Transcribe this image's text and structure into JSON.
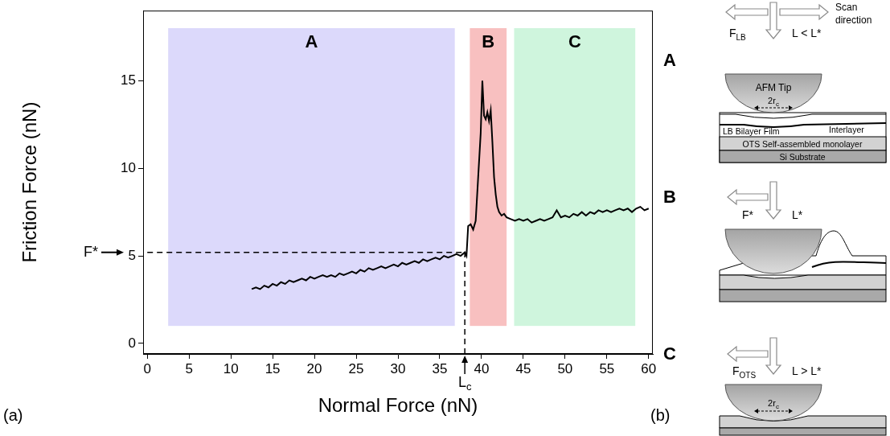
{
  "chart_data": {
    "type": "line",
    "x_label": "Normal Force (nN)",
    "y_label": "Friction Force (nN)",
    "x": [
      12.5,
      13,
      13.5,
      14,
      14.5,
      15,
      15.5,
      16,
      16.5,
      17,
      17.5,
      18,
      18.5,
      19,
      19.5,
      20,
      20.5,
      21,
      21.5,
      22,
      22.5,
      23,
      23.5,
      24,
      24.5,
      25,
      25.5,
      26,
      26.5,
      27,
      27.5,
      28,
      28.5,
      29,
      29.5,
      30,
      30.5,
      31,
      31.5,
      32,
      32.5,
      33,
      33.5,
      34,
      34.5,
      35,
      35.5,
      36,
      36.5,
      37,
      37.5,
      38,
      38.2,
      38.4,
      38.7,
      39,
      39.3,
      39.6,
      39.9,
      40.1,
      40.3,
      40.5,
      40.7,
      40.9,
      41.1,
      41.3,
      41.5,
      41.7,
      41.9,
      42.1,
      42.4,
      42.7,
      43,
      43.5,
      44,
      44.5,
      45,
      45.5,
      46,
      46.5,
      47,
      47.5,
      48,
      48.5,
      49,
      49.5,
      50,
      50.5,
      51,
      51.5,
      52,
      52.5,
      53,
      53.5,
      54,
      54.5,
      55,
      55.5,
      56,
      56.5,
      57,
      57.5,
      58,
      58.5,
      59,
      59.5,
      60
    ],
    "values": [
      3.1,
      3.2,
      3.1,
      3.3,
      3.2,
      3.4,
      3.3,
      3.5,
      3.4,
      3.6,
      3.5,
      3.6,
      3.7,
      3.6,
      3.8,
      3.7,
      3.8,
      3.9,
      3.8,
      3.9,
      3.8,
      4.0,
      3.9,
      4.0,
      4.1,
      4.0,
      4.2,
      4.1,
      4.3,
      4.2,
      4.3,
      4.4,
      4.3,
      4.4,
      4.5,
      4.4,
      4.6,
      4.5,
      4.6,
      4.7,
      4.6,
      4.8,
      4.7,
      4.8,
      4.9,
      4.8,
      5.0,
      4.9,
      5.0,
      5.1,
      5.0,
      5.2,
      5.0,
      6.7,
      6.8,
      6.5,
      7.0,
      9.5,
      12.0,
      15.0,
      13.0,
      12.8,
      13.2,
      12.7,
      13.3,
      11.5,
      9.5,
      8.5,
      7.8,
      7.5,
      7.3,
      7.4,
      7.2,
      7.1,
      7.0,
      7.1,
      7.0,
      7.1,
      6.9,
      7.0,
      7.1,
      7.0,
      7.1,
      7.2,
      7.6,
      7.2,
      7.3,
      7.2,
      7.4,
      7.3,
      7.5,
      7.3,
      7.5,
      7.4,
      7.6,
      7.5,
      7.6,
      7.5,
      7.6,
      7.7,
      7.6,
      7.7,
      7.5,
      7.7,
      7.8,
      7.6,
      7.7
    ],
    "color": "#000000",
    "xlim": [
      -0.5,
      60.5
    ],
    "xticks": [
      0,
      5,
      10,
      15,
      20,
      25,
      30,
      35,
      40,
      45,
      50,
      55,
      60
    ],
    "ylim": [
      -0.6,
      19
    ],
    "yticks": [
      0,
      5,
      10,
      15
    ],
    "grid": false,
    "regions": [
      {
        "label": "A",
        "x": [
          2.5,
          36.8
        ],
        "y": [
          1,
          18
        ],
        "color": "#dcd9fb"
      },
      {
        "label": "B",
        "x": [
          38.6,
          43.0
        ],
        "y": [
          1,
          18
        ],
        "color": "#f8c0c0"
      },
      {
        "label": "C",
        "x": [
          43.9,
          58.4
        ],
        "y": [
          1,
          18
        ],
        "color": "#cff5dd"
      }
    ],
    "markers": [
      {
        "text": "F*",
        "y": 5.2,
        "x": [
          0,
          38
        ]
      },
      {
        "text": "L",
        "sub": "c",
        "x": 38,
        "y": [
          -0.6,
          5.2
        ]
      }
    ]
  },
  "panel_labels": [
    "(a)",
    "(b)"
  ],
  "diagram": {
    "panels": [
      {
        "letter": "A",
        "force": {
          "text": "F",
          "sub": "LB"
        },
        "load": "L < L*",
        "scan": "Scan direction",
        "tip": "AFM Tip",
        "contact": {
          "text": "2r",
          "sub": "c"
        },
        "layers": [
          "LB Bilayer Film",
          "Interlayer",
          "OTS Self-assembled monolayer",
          "Si Substrate"
        ]
      },
      {
        "letter": "B",
        "force": {
          "text": "F*"
        },
        "load": "L*"
      },
      {
        "letter": "C",
        "force": {
          "text": "F",
          "sub": "OTS"
        },
        "load": "L > L*",
        "contact": {
          "text": "2r",
          "sub": "c"
        }
      }
    ]
  }
}
